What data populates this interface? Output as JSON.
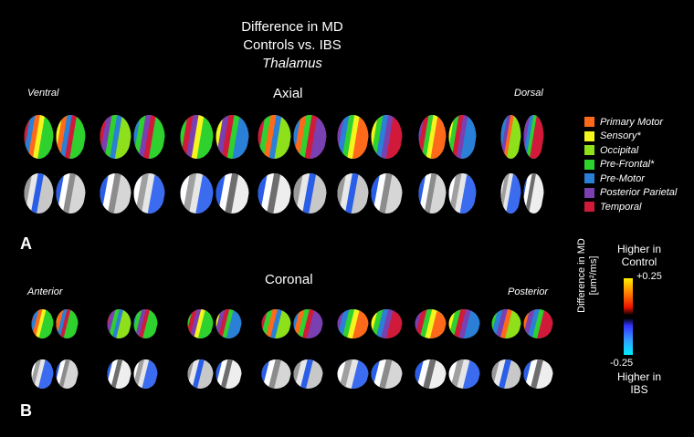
{
  "title": {
    "line1": "Difference in MD",
    "line2": "Controls vs. IBS",
    "line3": "Thalamus"
  },
  "panelA": {
    "letter": "A",
    "heading": "Axial",
    "left_label": "Ventral",
    "right_label": "Dorsal"
  },
  "panelB": {
    "letter": "B",
    "heading": "Coronal",
    "left_label": "Anterior",
    "right_label": "Posterior"
  },
  "legend": [
    {
      "label": "Primary Motor",
      "color": "#ff6a1a"
    },
    {
      "label": "Sensory*",
      "color": "#f5f51e"
    },
    {
      "label": "Occipital",
      "color": "#8ee01a"
    },
    {
      "label": "Pre-Frontal*",
      "color": "#2ed12e"
    },
    {
      "label": "Pre-Motor",
      "color": "#2a7fd6"
    },
    {
      "label": "Posterior Parietal",
      "color": "#7a3fb0"
    },
    {
      "label": "Temporal",
      "color": "#d11a3a"
    }
  ],
  "colorbar": {
    "top_label_1": "Higher in",
    "top_label_2": "Control",
    "bottom_label_1": "Higher in",
    "bottom_label_2": "IBS",
    "max": "+0.25",
    "min": "-0.25",
    "axis_label_1": "Difference in MD",
    "axis_label_2": "[um²/ms]"
  }
}
